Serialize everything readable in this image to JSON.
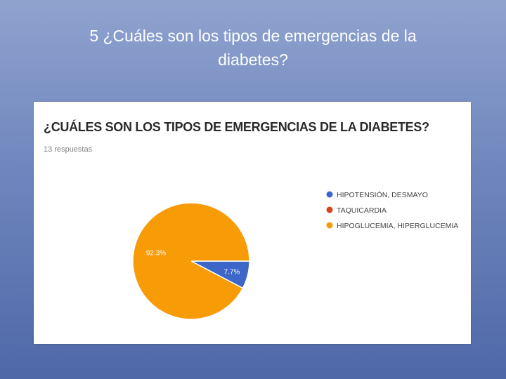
{
  "slide": {
    "title_line1": "5 ¿Cuáles son los tipos de emergencias de la",
    "title_line2": "diabetes?"
  },
  "chart_data": {
    "type": "pie",
    "title": "¿CUÁLES SON LOS TIPOS DE EMERGENCIAS DE LA DIABETES?",
    "subtitle": "13 respuestas",
    "legend_position": "right",
    "series": [
      {
        "name": "HIPOTENSIÓN, DESMAYO",
        "value": 7.7,
        "label": "7.7%",
        "color": "#3c67c9"
      },
      {
        "name": "TAQUICARDIA",
        "value": 0,
        "label": "",
        "color": "#d9431f"
      },
      {
        "name": "HIPOGLUCEMIA, HIPERGLUCEMIA",
        "value": 92.3,
        "label": "92.3%",
        "color": "#f79b07"
      }
    ]
  }
}
